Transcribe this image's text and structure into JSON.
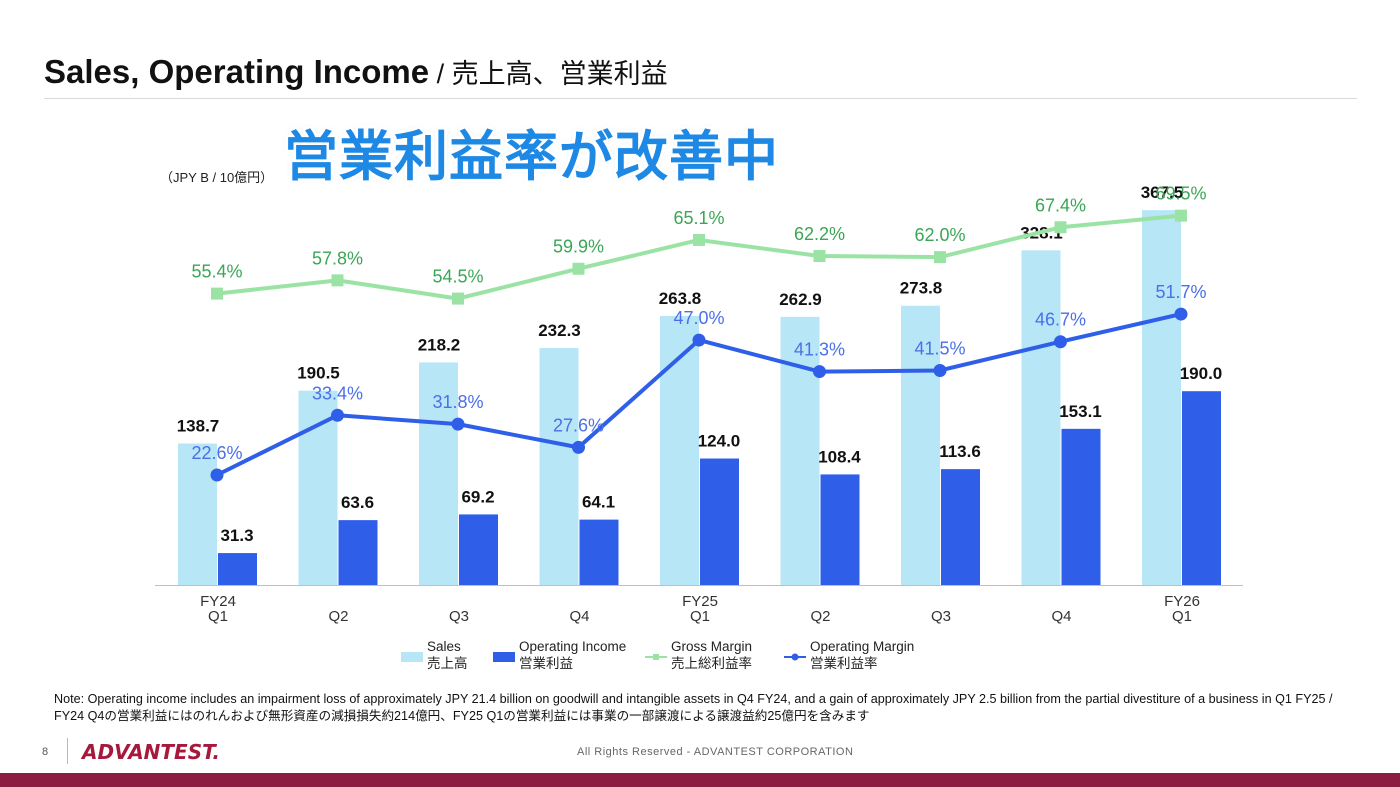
{
  "title": {
    "main": "Sales, Operating Income",
    "sub": " / 売上高、営業利益"
  },
  "callout": "営業利益率が改善中",
  "unit": "（JPY B / 10億円）",
  "chart_data": {
    "type": "bar",
    "categories": [
      {
        "line1": "FY24",
        "line2": "Q1"
      },
      {
        "line1": "",
        "line2": "Q2"
      },
      {
        "line1": "",
        "line2": "Q3"
      },
      {
        "line1": "",
        "line2": "Q4"
      },
      {
        "line1": "FY25",
        "line2": "Q1"
      },
      {
        "line1": "",
        "line2": "Q2"
      },
      {
        "line1": "",
        "line2": "Q3"
      },
      {
        "line1": "",
        "line2": "Q4"
      },
      {
        "line1": "FY26",
        "line2": "Q1"
      }
    ],
    "ylim": [
      0,
      400
    ],
    "series": [
      {
        "name": "Sales 売上高",
        "kind": "bar",
        "color": "#b7e6f7",
        "values": [
          138.7,
          190.5,
          218.2,
          232.3,
          263.8,
          262.9,
          273.8,
          328.1,
          367.5
        ],
        "labels": [
          "138.7",
          "190.5",
          "218.2",
          "232.3",
          "263.8",
          "262.9",
          "273.8",
          "328.1",
          "367.5"
        ]
      },
      {
        "name": "Operating Income 営業利益",
        "kind": "bar",
        "color": "#2f5fe8",
        "values": [
          31.3,
          63.6,
          69.2,
          64.1,
          124.0,
          108.4,
          113.6,
          153.1,
          190.0
        ],
        "labels": [
          "31.3",
          "63.6",
          "69.2",
          "64.1",
          "124.0",
          "108.4",
          "113.6",
          "153.1",
          "190.0"
        ]
      },
      {
        "name": "Gross Margin 売上総利益率",
        "kind": "line",
        "color": "#9be3a5",
        "label_color": "#3aa655",
        "marker": "square",
        "values": [
          55.4,
          57.8,
          54.5,
          59.9,
          65.1,
          62.2,
          62.0,
          67.4,
          69.5
        ],
        "labels": [
          "55.4%",
          "57.8%",
          "54.5%",
          "59.9%",
          "65.1%",
          "62.2%",
          "62.0%",
          "67.4%",
          "69.5%"
        ]
      },
      {
        "name": "Operating Margin 営業利益率",
        "kind": "line",
        "color": "#2f5fe8",
        "label_color": "#4a6fe8",
        "marker": "circle",
        "values": [
          22.6,
          33.4,
          31.8,
          27.6,
          47.0,
          41.3,
          41.5,
          46.7,
          51.7
        ],
        "labels": [
          "22.6%",
          "33.4%",
          "31.8%",
          "27.6%",
          "47.0%",
          "41.3%",
          "41.5%",
          "46.7%",
          "51.7%"
        ]
      }
    ],
    "legend": {
      "placement": "bottom",
      "items": [
        {
          "line1": "Sales",
          "line2": "売上高"
        },
        {
          "line1": "Operating Income",
          "line2": "営業利益"
        },
        {
          "line1": "Gross Margin",
          "line2": "売上総利益率"
        },
        {
          "line1": "Operating Margin",
          "line2": "営業利益率"
        }
      ]
    },
    "grid": false
  },
  "note": "Note: Operating income includes an impairment loss of approximately JPY 21.4 billion on goodwill and intangible assets in Q4 FY24, and a gain of approximately JPY 2.5 billion from the partial divestiture of a business in Q1 FY25 / FY24 Q4の営業利益にはのれんおよび無形資産の減損損失約214億円、FY25 Q1の営業利益には事業の一部譲渡による譲渡益約25億円を含みます",
  "footer": {
    "page": "8",
    "logo": "ADVANTEST.",
    "copyright": "All Rights Reserved - ADVANTEST CORPORATION"
  },
  "colors": {
    "accent": "#1e88e5",
    "brand": "#8c1d40"
  }
}
